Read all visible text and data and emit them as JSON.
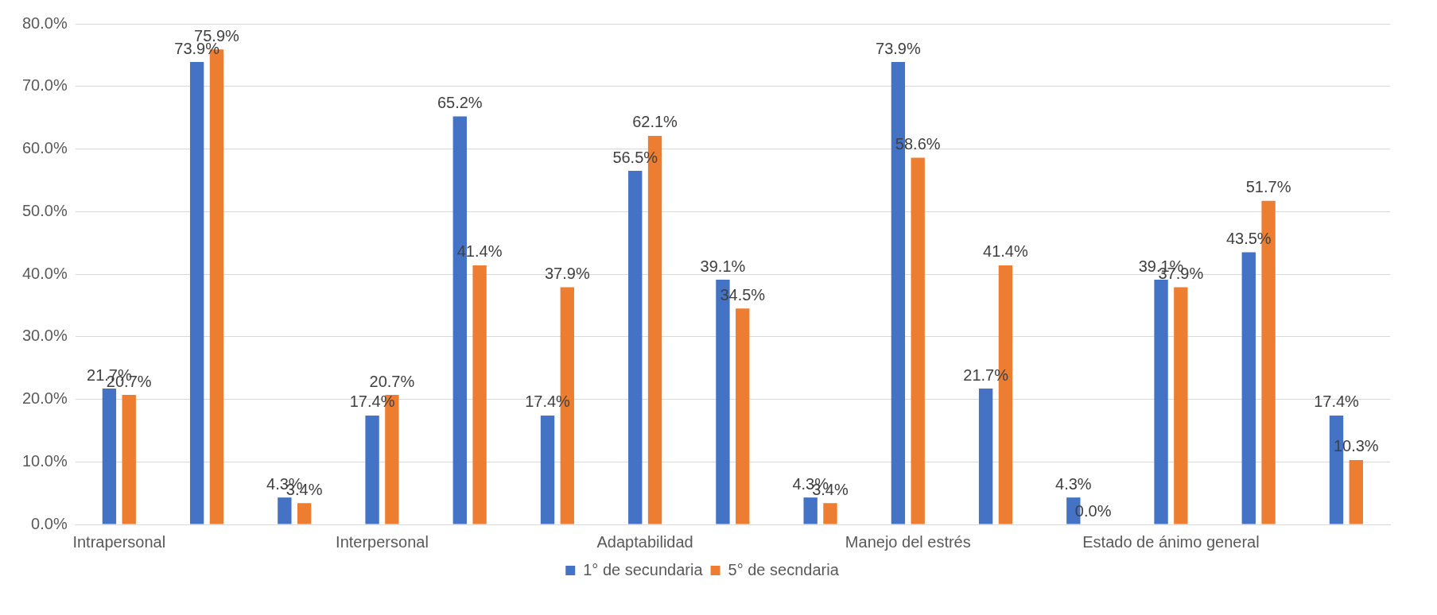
{
  "chart_data": {
    "type": "bar",
    "categories": [
      "Intrapersonal",
      null,
      null,
      "Interpersonal",
      null,
      null,
      "Adaptabilidad",
      null,
      null,
      "Manejo del estrés",
      null,
      null,
      "Estado de ánimo general",
      null,
      null
    ],
    "series": [
      {
        "name": "1° de secundaria",
        "color": "#4472c4",
        "values": [
          21.7,
          73.9,
          4.3,
          17.4,
          65.2,
          17.4,
          56.5,
          39.1,
          4.3,
          73.9,
          21.7,
          4.3,
          39.1,
          43.5,
          17.4
        ],
        "value_labels": [
          "21.7%",
          "73.9%",
          "4.3%",
          "17.4%",
          "65.2%",
          "17.4%",
          "56.5%",
          "39.1%",
          "4.3%",
          "73.9%",
          "21.7%",
          "4.3%",
          "39.1%",
          "43.5%",
          "17.4%"
        ]
      },
      {
        "name": "5° de secndaria",
        "color": "#ed7d31",
        "values": [
          20.7,
          75.9,
          3.4,
          20.7,
          41.4,
          37.9,
          62.1,
          34.5,
          3.4,
          58.6,
          41.4,
          0.0,
          37.9,
          51.7,
          10.3
        ],
        "value_labels": [
          "20.7%",
          "75.9%",
          "3.4%",
          "20.7%",
          "41.4%",
          "37.9%",
          "62.1%",
          "34.5%",
          "3.4%",
          "58.6%",
          "41.4%",
          "0.0%",
          "37.9%",
          "51.7%",
          "10.3%"
        ]
      }
    ],
    "ylim": [
      0,
      80
    ],
    "yticks": [
      {
        "value": 0,
        "label": "0.0%"
      },
      {
        "value": 10,
        "label": "10.0%"
      },
      {
        "value": 20,
        "label": "20.0%"
      },
      {
        "value": 30,
        "label": "30.0%"
      },
      {
        "value": 40,
        "label": "40.0%"
      },
      {
        "value": 50,
        "label": "50.0%"
      },
      {
        "value": 60,
        "label": "60.0%"
      },
      {
        "value": 70,
        "label": "70.0%"
      },
      {
        "value": 80,
        "label": "80.0%"
      }
    ],
    "grid": "y",
    "legend": "bottom"
  }
}
